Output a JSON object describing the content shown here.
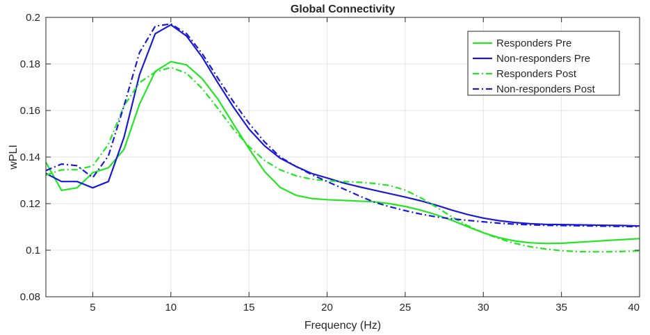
{
  "chart_data": {
    "type": "line",
    "title": "Global Connectivity",
    "xlabel": "Frequency (Hz)",
    "ylabel": "wPLI",
    "xlim": [
      2,
      40
    ],
    "ylim": [
      0.08,
      0.2
    ],
    "xticks": [
      5,
      10,
      15,
      20,
      25,
      30,
      35,
      40
    ],
    "xtick_labels": [
      "5",
      "10",
      "15",
      "20",
      "25",
      "30",
      "35",
      "40"
    ],
    "yticks": [
      0.08,
      0.1,
      0.12,
      0.14,
      0.16,
      0.18,
      0.2
    ],
    "ytick_labels": [
      "0.08",
      "0.1",
      "0.12",
      "0.14",
      "0.16",
      "0.18",
      "0.2"
    ],
    "grid": true,
    "legend_position": "top-right",
    "x": [
      2,
      3,
      4,
      5,
      6,
      7,
      8,
      9,
      10,
      11,
      12,
      13,
      14,
      15,
      16,
      17,
      18,
      19,
      20,
      21,
      22,
      23,
      24,
      25,
      26,
      27,
      28,
      29,
      30,
      31,
      32,
      33,
      34,
      35,
      36,
      37,
      38,
      39,
      40
    ],
    "series": [
      {
        "name": "Responders Pre",
        "color": "#22e622",
        "style": "solid",
        "values": [
          0.1378,
          0.1257,
          0.1268,
          0.1333,
          0.1354,
          0.1433,
          0.1628,
          0.1768,
          0.181,
          0.1796,
          0.1737,
          0.165,
          0.1542,
          0.1436,
          0.1338,
          0.127,
          0.1236,
          0.1222,
          0.1217,
          0.1214,
          0.1211,
          0.1208,
          0.12,
          0.1188,
          0.1172,
          0.1152,
          0.1128,
          0.1101,
          0.1075,
          0.1054,
          0.104,
          0.1032,
          0.1029,
          0.103,
          0.1034,
          0.1038,
          0.1042,
          0.1046,
          0.105
        ]
      },
      {
        "name": "Non-responders Pre",
        "color": "#1a1ad6",
        "style": "solid",
        "values": [
          0.133,
          0.1295,
          0.1295,
          0.1268,
          0.1295,
          0.1485,
          0.1755,
          0.193,
          0.1968,
          0.192,
          0.183,
          0.172,
          0.1615,
          0.152,
          0.1448,
          0.1395,
          0.136,
          0.133,
          0.131,
          0.129,
          0.1273,
          0.1258,
          0.1243,
          0.1228,
          0.1212,
          0.1193,
          0.1172,
          0.1153,
          0.1138,
          0.1127,
          0.1119,
          0.1114,
          0.1111,
          0.111,
          0.1109,
          0.1108,
          0.1107,
          0.1106,
          0.1104
        ]
      },
      {
        "name": "Responders Post",
        "color": "#22e622",
        "style": "dashdot",
        "values": [
          0.1322,
          0.1345,
          0.1346,
          0.1362,
          0.1455,
          0.162,
          0.172,
          0.1765,
          0.1785,
          0.176,
          0.1695,
          0.161,
          0.152,
          0.1445,
          0.1385,
          0.1345,
          0.132,
          0.1305,
          0.1298,
          0.1295,
          0.1292,
          0.1287,
          0.1278,
          0.1258,
          0.1225,
          0.1185,
          0.1143,
          0.1105,
          0.1075,
          0.105,
          0.103,
          0.1015,
          0.1005,
          0.0998,
          0.0994,
          0.0993,
          0.0993,
          0.0995,
          0.0997
        ]
      },
      {
        "name": "Non-responders Post",
        "color": "#1a1ad6",
        "style": "dashdot",
        "values": [
          0.1342,
          0.137,
          0.1363,
          0.1312,
          0.1405,
          0.162,
          0.185,
          0.1962,
          0.1972,
          0.193,
          0.1845,
          0.174,
          0.1638,
          0.1545,
          0.1465,
          0.14,
          0.136,
          0.1325,
          0.1295,
          0.1265,
          0.1235,
          0.1207,
          0.1187,
          0.117,
          0.1155,
          0.1143,
          0.1135,
          0.1128,
          0.1122,
          0.1116,
          0.1112,
          0.1109,
          0.1107,
          0.1106,
          0.1105,
          0.1104,
          0.1103,
          0.1102,
          0.1101
        ]
      }
    ]
  }
}
